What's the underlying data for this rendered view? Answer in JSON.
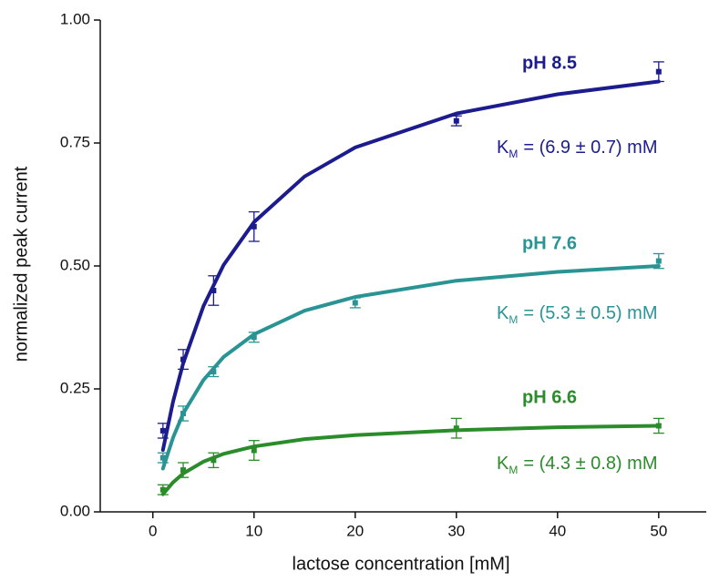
{
  "chart_data": {
    "type": "scatter",
    "x_label": "lactose concentration [mM]",
    "y_label": "normalized peak current",
    "xlim": [
      -5.2,
      54.7
    ],
    "ylim": [
      0,
      1.0
    ],
    "xticks": [
      0,
      10,
      20,
      30,
      40,
      50
    ],
    "yticks": [
      {
        "value": 0,
        "label": "0.00"
      },
      {
        "value": 0.25,
        "label": "0.25"
      },
      {
        "value": 0.5,
        "label": "0.50"
      },
      {
        "value": 0.75,
        "label": "0.75"
      },
      {
        "value": 1.0,
        "label": "1.00"
      }
    ],
    "grid": false,
    "series": [
      {
        "name": "pH 8.5",
        "color": "#1c1c8e",
        "x": [
          1,
          3,
          6,
          10,
          30,
          50
        ],
        "values": [
          0.165,
          0.31,
          0.45,
          0.58,
          0.795,
          0.895
        ],
        "errors": [
          0.015,
          0.02,
          0.03,
          0.03,
          0.01,
          0.02
        ],
        "fit": {
          "x": [
            1,
            2,
            3,
            5,
            7,
            10,
            15,
            20,
            30,
            40,
            50
          ],
          "values": [
            0.126,
            0.224,
            0.302,
            0.418,
            0.502,
            0.589,
            0.682,
            0.741,
            0.81,
            0.849,
            0.875
          ]
        },
        "annotation": {
          "symbol": "K",
          "subscript": "M",
          "text": "= (6.9 ± 0.7) mM"
        }
      },
      {
        "name": "pH 7.6",
        "color": "#2a9494",
        "x": [
          1,
          3,
          6,
          10,
          20,
          50
        ],
        "values": [
          0.11,
          0.2,
          0.285,
          0.355,
          0.425,
          0.51
        ],
        "errors": [
          0.01,
          0.015,
          0.01,
          0.01,
          0.01,
          0.015
        ],
        "fit": {
          "x": [
            1,
            2,
            3,
            5,
            7,
            10,
            15,
            20,
            30,
            40,
            50
          ],
          "values": [
            0.088,
            0.151,
            0.2,
            0.268,
            0.315,
            0.361,
            0.409,
            0.437,
            0.47,
            0.488,
            0.5
          ]
        },
        "annotation": {
          "symbol": "K",
          "subscript": "M",
          "text": "= (5.3 ± 0.5) mM"
        }
      },
      {
        "name": "pH 6.6",
        "color": "#2a8c2a",
        "x": [
          1,
          3,
          6,
          10,
          30,
          50
        ],
        "values": [
          0.045,
          0.085,
          0.105,
          0.125,
          0.17,
          0.175
        ],
        "errors": [
          0.01,
          0.015,
          0.015,
          0.02,
          0.02,
          0.015
        ],
        "fit": {
          "x": [
            1,
            2,
            3,
            5,
            7,
            10,
            15,
            20,
            30,
            40,
            50
          ],
          "values": [
            0.036,
            0.06,
            0.078,
            0.102,
            0.118,
            0.133,
            0.148,
            0.156,
            0.166,
            0.172,
            0.175
          ]
        },
        "annotation": {
          "symbol": "K",
          "subscript": "M",
          "text": "= (4.3 ± 0.8) mM"
        }
      }
    ]
  }
}
